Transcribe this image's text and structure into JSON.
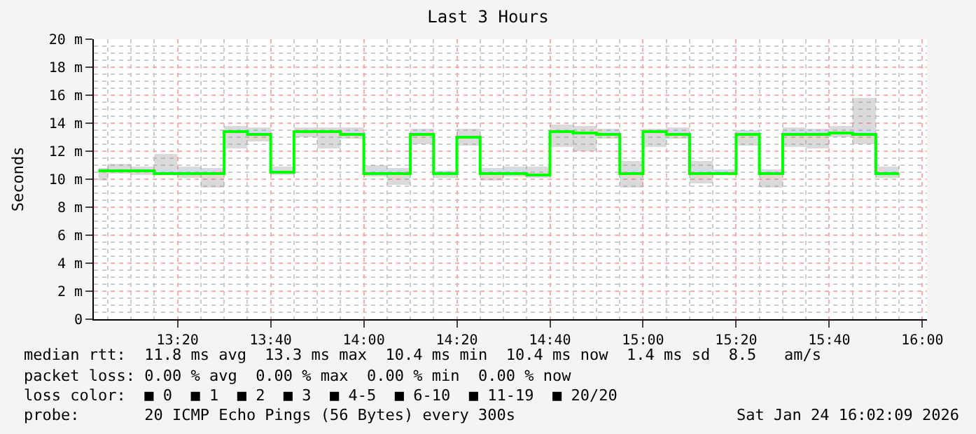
{
  "chart_data": {
    "type": "step",
    "title": "Last 3 Hours",
    "ylabel": "Seconds",
    "x": [
      "2026-01-24T13:03",
      "2026-01-24T13:05",
      "2026-01-24T13:10",
      "2026-01-24T13:15",
      "2026-01-24T13:20",
      "2026-01-24T13:25",
      "2026-01-24T13:30",
      "2026-01-24T13:35",
      "2026-01-24T13:40",
      "2026-01-24T13:45",
      "2026-01-24T13:50",
      "2026-01-24T13:55",
      "2026-01-24T14:00",
      "2026-01-24T14:05",
      "2026-01-24T14:10",
      "2026-01-24T14:15",
      "2026-01-24T14:20",
      "2026-01-24T14:25",
      "2026-01-24T14:30",
      "2026-01-24T14:35",
      "2026-01-24T14:40",
      "2026-01-24T14:45",
      "2026-01-24T14:50",
      "2026-01-24T14:55",
      "2026-01-24T15:00",
      "2026-01-24T15:05",
      "2026-01-24T15:10",
      "2026-01-24T15:15",
      "2026-01-24T15:20",
      "2026-01-24T15:25",
      "2026-01-24T15:30",
      "2026-01-24T15:35",
      "2026-01-24T15:40",
      "2026-01-24T15:45",
      "2026-01-24T15:50",
      "2026-01-24T15:55"
    ],
    "series": [
      {
        "color": "#00ff00",
        "values": [
          10.6,
          10.6,
          10.6,
          10.4,
          10.4,
          10.4,
          13.4,
          13.2,
          10.5,
          13.4,
          13.4,
          13.2,
          10.4,
          10.4,
          13.2,
          10.4,
          13.0,
          10.4,
          10.4,
          10.3,
          13.4,
          13.3,
          13.2,
          10.4,
          13.4,
          13.2,
          10.4,
          10.4,
          13.2,
          10.4,
          13.2,
          13.2,
          13.3,
          13.2,
          10.4,
          10.4
        ],
        "lower": [
          9.9,
          10.4,
          10.3,
          10.3,
          10.1,
          9.4,
          12.2,
          12.7,
          10.3,
          13.0,
          12.2,
          12.9,
          10.2,
          9.6,
          12.5,
          10.1,
          12.4,
          9.9,
          10.2,
          10.1,
          12.3,
          12.0,
          12.9,
          9.4,
          12.3,
          12.9,
          9.7,
          10.3,
          12.4,
          9.4,
          12.3,
          12.2,
          13.0,
          12.5,
          10.1,
          10.1
        ],
        "upper": [
          10.8,
          11.1,
          10.9,
          11.8,
          10.9,
          10.8,
          13.8,
          13.7,
          10.9,
          13.7,
          13.7,
          13.7,
          11.0,
          10.8,
          13.6,
          10.6,
          13.6,
          10.8,
          10.9,
          10.9,
          13.9,
          13.8,
          13.6,
          11.3,
          13.6,
          13.7,
          11.3,
          10.7,
          13.5,
          10.7,
          13.7,
          13.6,
          13.8,
          15.8,
          10.9,
          10.9
        ]
      }
    ],
    "xlim": [
      "2026-01-24T13:02",
      "2026-01-24T16:01"
    ],
    "xticks": [
      {
        "value": "2026-01-24T13:20",
        "label": "13:20"
      },
      {
        "value": "2026-01-24T13:40",
        "label": "13:40"
      },
      {
        "value": "2026-01-24T14:00",
        "label": "14:00"
      },
      {
        "value": "2026-01-24T14:20",
        "label": "14:20"
      },
      {
        "value": "2026-01-24T14:40",
        "label": "14:40"
      },
      {
        "value": "2026-01-24T15:00",
        "label": "15:00"
      },
      {
        "value": "2026-01-24T15:20",
        "label": "15:20"
      },
      {
        "value": "2026-01-24T15:40",
        "label": "15:40"
      },
      {
        "value": "2026-01-24T16:00",
        "label": "16:00"
      }
    ],
    "ylim": [
      0,
      20
    ],
    "yticks": [
      0,
      {
        "value": 2,
        "label": "2 m"
      },
      {
        "value": 4,
        "label": "4 m"
      },
      {
        "value": 6,
        "label": "6 m"
      },
      {
        "value": 8,
        "label": "8 m"
      },
      {
        "value": 10,
        "label": "10 m"
      },
      {
        "value": 12,
        "label": "12 m"
      },
      {
        "value": 14,
        "label": "14 m"
      },
      {
        "value": 16,
        "label": "16 m"
      },
      {
        "value": 18,
        "label": "18 m"
      },
      {
        "value": 20,
        "label": "20 m"
      }
    ],
    "grid": true,
    "annotations": [
      "median rtt:  11.8 ms avg  13.3 ms max  10.4 ms min  10.4 ms now  1.4 ms sd  8.5   am/s",
      "packet loss: 0.00 % avg  0.00 % max  0.00 % min  0.00 % now",
      "loss color:  ■ 0  ■ 1  ■ 2  ■ 3  ■ 4-5  ■ 6-10  ■ 11-19  ■ 20/20",
      "probe:       20 ICMP Echo Pings (56 Bytes) every 300s",
      "Sat Jan 24 16:02:09 2026"
    ]
  }
}
